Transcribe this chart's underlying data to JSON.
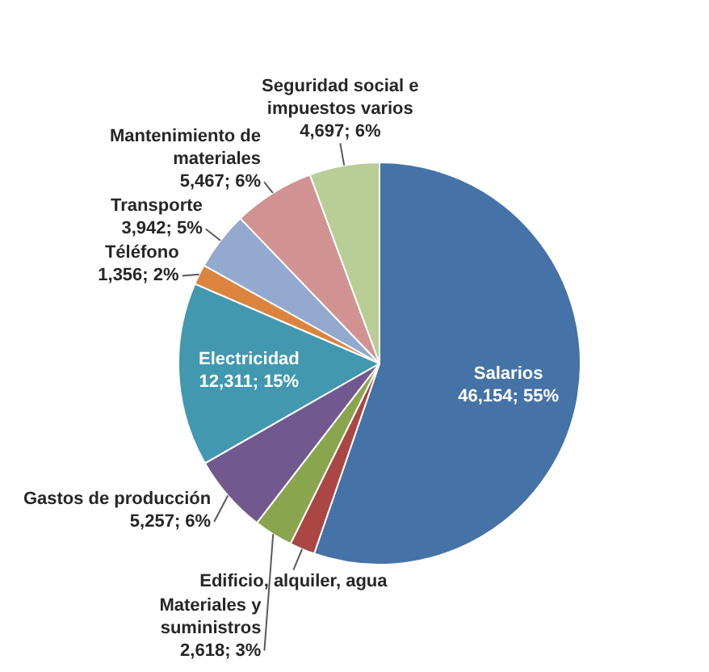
{
  "chart_data": {
    "type": "pie",
    "categories": [
      "Salarios",
      "Edificio, alquiler, agua",
      "Materiales y suministros",
      "Gastos de producción",
      "Electricidad",
      "Téléfono",
      "Transporte",
      "Mantenimiento de materiales",
      "Seguridad social e impuestos varios"
    ],
    "values": [
      46154,
      1700,
      2618,
      5257,
      12311,
      1356,
      3942,
      5467,
      4697
    ],
    "colors": [
      "#4572a7",
      "#aa4643",
      "#89a54e",
      "#71588f",
      "#4198af",
      "#db843d",
      "#93a9cf",
      "#d19392",
      "#b9cd96"
    ],
    "value_labels": [
      "46,154; 55%",
      null,
      "2,618; 3%",
      "5,257; 6%",
      "12,311; 15%",
      "1,356; 2%",
      "3,942; 5%",
      "5,467; 6%",
      "4,697; 6%"
    ]
  }
}
